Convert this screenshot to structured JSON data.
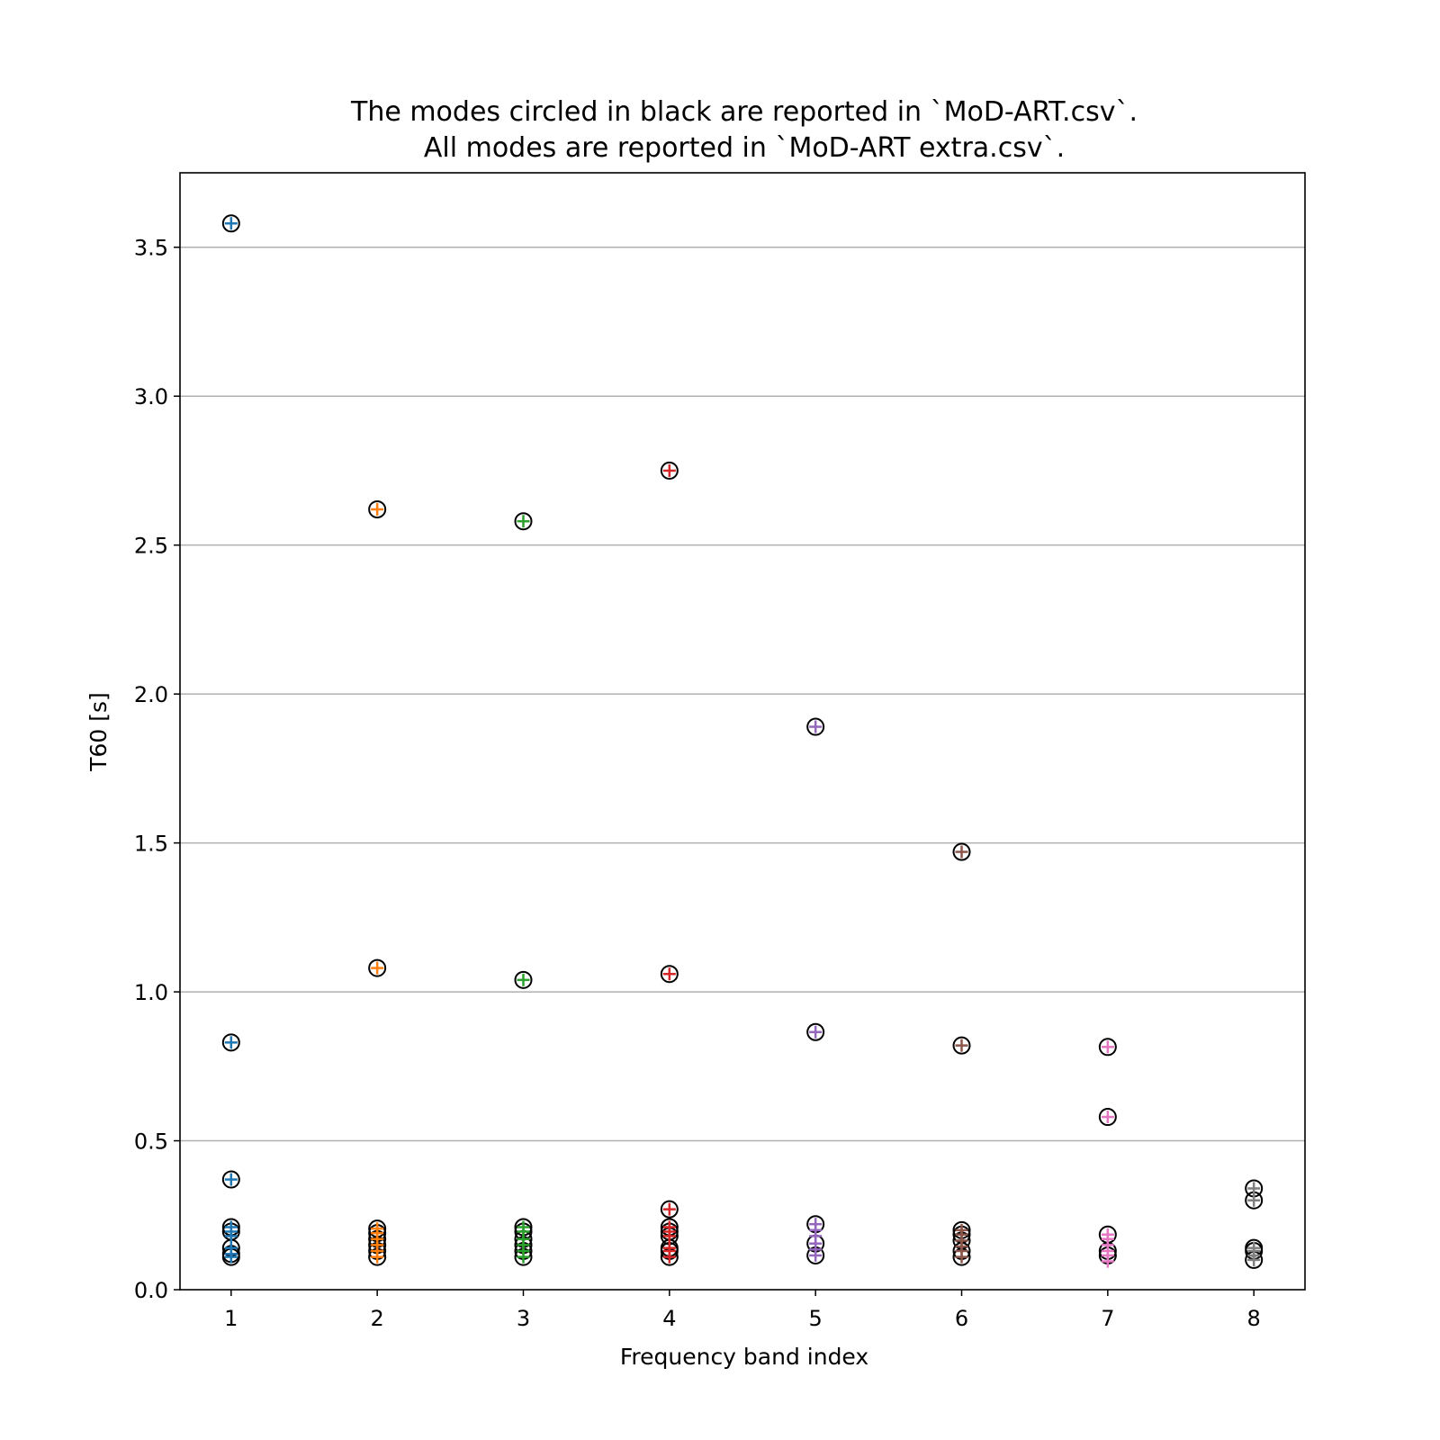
{
  "chart_data": {
    "type": "scatter",
    "title_lines": [
      "The modes circled in black are reported in `MoD-ART.csv`.",
      "All modes are reported in `MoD-ART extra.csv`."
    ],
    "xlabel": "Frequency band index",
    "ylabel": "T60 [s]",
    "xlim": [
      0.65,
      8.35
    ],
    "ylim": [
      0,
      3.75
    ],
    "xticks": [
      1,
      2,
      3,
      4,
      5,
      6,
      7,
      8
    ],
    "yticks": [
      0.0,
      0.5,
      1.0,
      1.5,
      2.0,
      2.5,
      3.0,
      3.5
    ],
    "ytick_labels": [
      "0.0",
      "0.5",
      "1.0",
      "1.5",
      "2.0",
      "2.5",
      "3.0",
      "3.5"
    ],
    "grid": "horizontal",
    "marker": "plus",
    "series": [
      {
        "x": 1,
        "color": "#1f77b4",
        "values": [
          3.58,
          0.83,
          0.37,
          0.21,
          0.195,
          0.18,
          0.14,
          0.12,
          0.11
        ],
        "circled": [
          3.58,
          0.83,
          0.37,
          0.21,
          0.195,
          0.14,
          0.12,
          0.11
        ]
      },
      {
        "x": 2,
        "color": "#ff7f0e",
        "values": [
          2.62,
          1.08,
          0.205,
          0.19,
          0.17,
          0.15,
          0.13,
          0.11
        ],
        "circled": [
          2.62,
          1.08,
          0.205,
          0.19,
          0.17,
          0.15,
          0.13,
          0.11
        ]
      },
      {
        "x": 3,
        "color": "#2ca02c",
        "values": [
          2.58,
          1.04,
          0.21,
          0.195,
          0.17,
          0.15,
          0.13,
          0.11
        ],
        "circled": [
          2.58,
          1.04,
          0.21,
          0.195,
          0.17,
          0.15,
          0.13,
          0.11
        ]
      },
      {
        "x": 4,
        "color": "#d62728",
        "values": [
          2.75,
          1.06,
          0.27,
          0.21,
          0.195,
          0.18,
          0.14,
          0.13,
          0.11
        ],
        "circled": [
          2.75,
          1.06,
          0.27,
          0.21,
          0.195,
          0.18,
          0.14,
          0.13,
          0.11
        ]
      },
      {
        "x": 5,
        "color": "#9467bd",
        "values": [
          1.89,
          0.865,
          0.22,
          0.2,
          0.18,
          0.155,
          0.135,
          0.115
        ],
        "circled": [
          1.89,
          0.865,
          0.22,
          0.155,
          0.115
        ]
      },
      {
        "x": 6,
        "color": "#8c564b",
        "values": [
          1.47,
          0.82,
          0.2,
          0.185,
          0.165,
          0.145,
          0.13,
          0.11
        ],
        "circled": [
          1.47,
          0.82,
          0.2,
          0.185,
          0.165,
          0.13,
          0.11
        ]
      },
      {
        "x": 7,
        "color": "#e377c2",
        "values": [
          0.815,
          0.58,
          0.185,
          0.17,
          0.15,
          0.13,
          0.115,
          0.095
        ],
        "circled": [
          0.815,
          0.58,
          0.185,
          0.13,
          0.115
        ]
      },
      {
        "x": 8,
        "color": "#7f7f7f",
        "values": [
          0.34,
          0.3,
          0.14,
          0.13,
          0.115,
          0.1
        ],
        "circled": [
          0.34,
          0.3,
          0.14,
          0.13,
          0.1
        ]
      }
    ]
  }
}
